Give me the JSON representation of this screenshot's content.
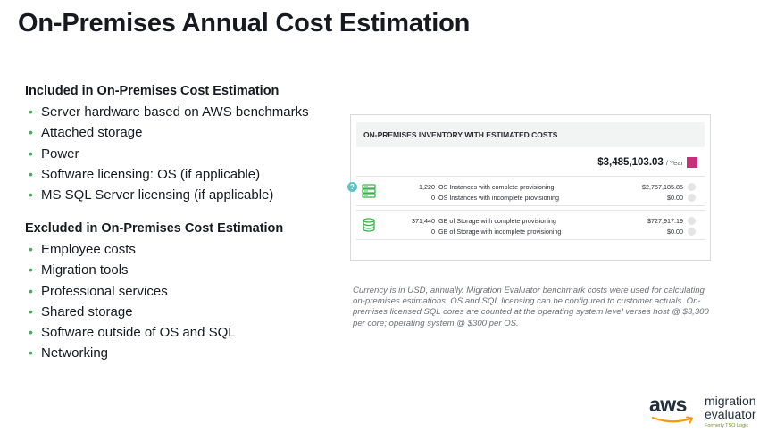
{
  "slide": {
    "title": "On-Premises Annual Cost Estimation"
  },
  "included": {
    "heading": "Included in On-Premises Cost Estimation",
    "items": [
      "Server hardware based on AWS benchmarks",
      "Attached storage",
      "Power",
      "Software licensing: OS (if applicable)",
      "MS SQL Server licensing (if applicable)"
    ]
  },
  "excluded": {
    "heading": "Excluded in On-Premises Cost Estimation",
    "items": [
      "Employee costs",
      "Migration tools",
      "Professional services",
      "Shared storage",
      "Software outside of OS and SQL",
      "Networking"
    ]
  },
  "panel": {
    "heading": "ON-PREMISES INVENTORY WITH ESTIMATED COSTS",
    "total": "$3,485,103.03",
    "total_period": "/ Year",
    "total_color": "#c4307a",
    "servers": {
      "icon": "server-stack-icon",
      "rows": [
        {
          "count": "1,220",
          "desc": "OS Instances with complete provisioning",
          "cost": "$2,757,185.85"
        },
        {
          "count": "0",
          "desc": "OS Instances with incomplete provisioning",
          "cost": "$0.00"
        }
      ],
      "help": "?"
    },
    "storage": {
      "icon": "database-icon",
      "rows": [
        {
          "count": "371,440",
          "desc": "GB of Storage with complete provisioning",
          "cost": "$727,917.19"
        },
        {
          "count": "0",
          "desc": "GB of Storage with incomplete provisioning",
          "cost": "$0.00"
        }
      ]
    }
  },
  "footnote": "Currency is in USD, annually. Migration Evaluator benchmark costs were used for calculating on-premises estimations. OS and SQL licensing can be configured to customer actuals. On-premises licensed SQL cores are counted at the operating system level verses host @ $3,300 per core; operating system @ $300 per OS.",
  "logo": {
    "brand": "aws",
    "line1": "migration",
    "line2": "evaluator",
    "formerly": "Formerly TSO Logic"
  },
  "colors": {
    "bullet": "#3bb44a",
    "icon_green": "#3bb44a",
    "help": "#5cc4c8"
  }
}
